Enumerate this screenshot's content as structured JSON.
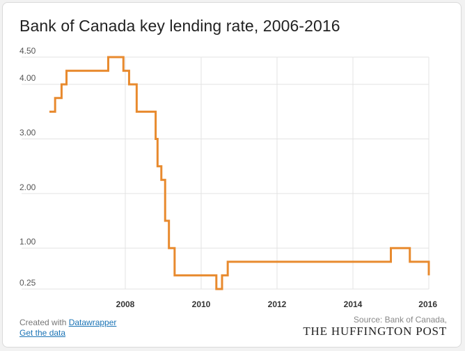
{
  "title": "Bank of Canada key lending rate, 2006-2016",
  "footer": {
    "created_with": "Created with ",
    "datawrapper_link": "Datawrapper",
    "get_data_link": "Get the data",
    "source": "Source: Bank of Canada,",
    "brand": "THE HUFFINGTON POST"
  },
  "colors": {
    "line": "#e88a2e",
    "grid": "#e3e3e3",
    "text": "#333333"
  },
  "chart_data": {
    "type": "line",
    "title": "Bank of Canada key lending rate, 2006-2016",
    "xlabel": "",
    "ylabel": "",
    "xlim": [
      2006.0,
      2016.0
    ],
    "ylim": [
      0.25,
      4.5
    ],
    "xticks": [
      2008,
      2010,
      2012,
      2014,
      2016
    ],
    "xtick_labels": [
      "2008",
      "2010",
      "2012",
      "2014",
      "2016"
    ],
    "yticks": [
      4.5,
      4.0,
      3.0,
      2.0,
      1.0,
      0.25
    ],
    "ytick_labels": [
      "4.50",
      "4.00",
      "3.00",
      "2.00",
      "1.00",
      "0.25"
    ],
    "grid": true,
    "step": true,
    "series": [
      {
        "x": [
          2006.0,
          2006.15,
          2006.32,
          2006.45,
          2007.55,
          2007.95,
          2008.1,
          2008.3,
          2008.8,
          2008.85,
          2008.95,
          2009.05,
          2009.15,
          2009.3,
          2010.4,
          2010.55,
          2010.7,
          2015.0,
          2015.5,
          2016.0
        ],
        "y": [
          3.5,
          3.75,
          4.0,
          4.25,
          4.5,
          4.25,
          4.0,
          3.5,
          3.0,
          2.5,
          2.25,
          1.5,
          1.0,
          0.5,
          0.25,
          0.5,
          0.75,
          1.0,
          0.75,
          0.5
        ]
      }
    ]
  }
}
